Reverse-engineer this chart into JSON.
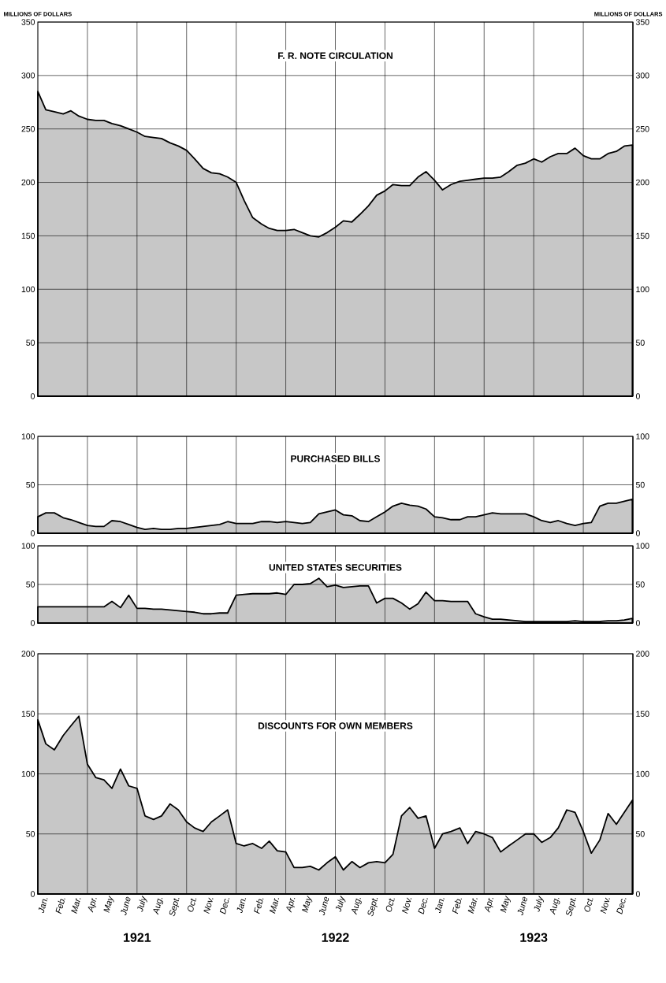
{
  "chart_data": [
    {
      "type": "area",
      "title": "F. R. NOTE CIRCULATION",
      "ylabel": "MILLIONS OF DOLLARS",
      "y2label": "MILLIONS OF DOLLARS",
      "color": "#000000",
      "grid": true,
      "tick_labels": "y",
      "xlim": [
        "1921-01-01",
        "1924-01-01"
      ],
      "ylim": [
        0,
        350
      ],
      "yticks": [
        0,
        50,
        100,
        150,
        200,
        250,
        300,
        350
      ],
      "y2lim": [
        0,
        350
      ],
      "y2ticks": [
        0,
        50,
        100,
        150,
        200,
        250,
        300,
        350
      ],
      "xticks": [
        {
          "value": "1921-04-01",
          "label": null
        },
        {
          "value": "1921-07-01",
          "label": null
        },
        {
          "value": "1921-10-01",
          "label": null
        },
        {
          "value": "1922-01-01",
          "label": null
        },
        {
          "value": "1922-04-01",
          "label": null
        },
        {
          "value": "1922-07-01",
          "label": null
        },
        {
          "value": "1922-10-01",
          "label": null
        },
        {
          "value": "1923-01-01",
          "label": null
        },
        {
          "value": "1923-04-01",
          "label": null
        },
        {
          "value": "1923-07-01",
          "label": null
        },
        {
          "value": "1923-10-01",
          "label": null
        }
      ],
      "x": [
        "1921-01-01",
        "1921-01-16",
        "1921-02-01",
        "1921-02-16",
        "1921-03-01",
        "1921-03-16",
        "1921-04-01",
        "1921-04-16",
        "1921-05-01",
        "1921-05-16",
        "1921-06-01",
        "1921-06-16",
        "1921-07-01",
        "1921-07-16",
        "1921-08-01",
        "1921-08-16",
        "1921-09-01",
        "1921-09-16",
        "1921-10-01",
        "1921-10-16",
        "1921-11-01",
        "1921-11-16",
        "1921-12-01",
        "1921-12-16",
        "1922-01-01",
        "1922-01-16",
        "1922-02-01",
        "1922-02-16",
        "1922-03-01",
        "1922-03-16",
        "1922-04-01",
        "1922-04-16",
        "1922-05-01",
        "1922-05-16",
        "1922-06-01",
        "1922-06-16",
        "1922-07-01",
        "1922-07-16",
        "1922-08-01",
        "1922-08-16",
        "1922-09-01",
        "1922-09-16",
        "1922-10-01",
        "1922-10-16",
        "1922-11-01",
        "1922-11-16",
        "1922-12-01",
        "1922-12-16",
        "1923-01-01",
        "1923-01-16",
        "1923-02-01",
        "1923-02-16",
        "1923-03-01",
        "1923-03-16",
        "1923-04-01",
        "1923-04-16",
        "1923-05-01",
        "1923-05-16",
        "1923-06-01",
        "1923-06-16",
        "1923-07-01",
        "1923-07-16",
        "1923-08-01",
        "1923-08-16",
        "1923-09-01",
        "1923-09-16",
        "1923-10-01",
        "1923-10-16",
        "1923-11-01",
        "1923-11-16",
        "1923-12-01",
        "1923-12-16",
        "1923-12-31"
      ],
      "values": [
        285,
        268,
        266,
        264,
        267,
        262,
        259,
        258,
        258,
        255,
        253,
        250,
        247,
        243,
        242,
        241,
        237,
        234,
        230,
        222,
        213,
        209,
        208,
        205,
        200,
        183,
        167,
        161,
        157,
        155,
        155,
        156,
        153,
        150,
        149,
        153,
        158,
        164,
        163,
        170,
        178,
        188,
        192,
        198,
        197,
        197,
        205,
        210,
        202,
        193,
        198,
        201,
        202,
        203,
        204,
        204,
        205,
        210,
        216,
        218,
        222,
        219,
        224,
        227,
        227,
        232,
        225,
        222,
        222,
        227,
        229,
        234,
        235
      ]
    },
    {
      "type": "area",
      "title": "PURCHASED BILLS",
      "color": "#000000",
      "grid": true,
      "tick_labels": "y",
      "xlim": [
        "1921-01-01",
        "1924-01-01"
      ],
      "ylim": [
        0,
        100
      ],
      "yticks": [
        0,
        50,
        100
      ],
      "y2lim": [
        0,
        100
      ],
      "y2ticks": [
        0,
        50,
        100
      ],
      "xticks": [
        {
          "value": "1921-04-01",
          "label": null
        },
        {
          "value": "1921-07-01",
          "label": null
        },
        {
          "value": "1921-10-01",
          "label": null
        },
        {
          "value": "1922-01-01",
          "label": null
        },
        {
          "value": "1922-04-01",
          "label": null
        },
        {
          "value": "1922-07-01",
          "label": null
        },
        {
          "value": "1922-10-01",
          "label": null
        },
        {
          "value": "1923-01-01",
          "label": null
        },
        {
          "value": "1923-04-01",
          "label": null
        },
        {
          "value": "1923-07-01",
          "label": null
        },
        {
          "value": "1923-10-01",
          "label": null
        }
      ],
      "x": [
        "1921-01-01",
        "1921-01-16",
        "1921-02-01",
        "1921-02-16",
        "1921-03-01",
        "1921-03-16",
        "1921-04-01",
        "1921-04-16",
        "1921-05-01",
        "1921-05-16",
        "1921-06-01",
        "1921-06-16",
        "1921-07-01",
        "1921-07-16",
        "1921-08-01",
        "1921-08-16",
        "1921-09-01",
        "1921-09-16",
        "1921-10-01",
        "1921-10-16",
        "1921-11-01",
        "1921-11-16",
        "1921-12-01",
        "1921-12-16",
        "1922-01-01",
        "1922-01-16",
        "1922-02-01",
        "1922-02-16",
        "1922-03-01",
        "1922-03-16",
        "1922-04-01",
        "1922-04-16",
        "1922-05-01",
        "1922-05-16",
        "1922-06-01",
        "1922-06-16",
        "1922-07-01",
        "1922-07-16",
        "1922-08-01",
        "1922-08-16",
        "1922-09-01",
        "1922-09-16",
        "1922-10-01",
        "1922-10-16",
        "1922-11-01",
        "1922-11-16",
        "1922-12-01",
        "1922-12-16",
        "1923-01-01",
        "1923-01-16",
        "1923-02-01",
        "1923-02-16",
        "1923-03-01",
        "1923-03-16",
        "1923-04-01",
        "1923-04-16",
        "1923-05-01",
        "1923-05-16",
        "1923-06-01",
        "1923-06-16",
        "1923-07-01",
        "1923-07-16",
        "1923-08-01",
        "1923-08-16",
        "1923-09-01",
        "1923-09-16",
        "1923-10-01",
        "1923-10-16",
        "1923-11-01",
        "1923-11-16",
        "1923-12-01",
        "1923-12-16",
        "1923-12-31"
      ],
      "values": [
        17,
        21,
        21,
        16,
        14,
        11,
        8,
        7,
        7,
        13,
        12,
        9,
        6,
        4,
        5,
        4,
        4,
        5,
        5,
        6,
        7,
        8,
        9,
        12,
        10,
        10,
        10,
        12,
        12,
        11,
        12,
        11,
        10,
        11,
        20,
        22,
        24,
        19,
        18,
        13,
        12,
        17,
        22,
        28,
        31,
        29,
        28,
        25,
        17,
        16,
        14,
        14,
        17,
        17,
        19,
        21,
        20,
        20,
        20,
        20,
        17,
        13,
        11,
        13,
        10,
        8,
        10,
        11,
        28,
        31,
        31,
        33,
        35
      ]
    },
    {
      "type": "area",
      "title": "UNITED STATES SECURITIES",
      "color": "#000000",
      "grid": true,
      "tick_labels": "y",
      "xlim": [
        "1921-01-01",
        "1924-01-01"
      ],
      "ylim": [
        0,
        100
      ],
      "yticks": [
        0,
        50,
        100
      ],
      "y2lim": [
        0,
        100
      ],
      "y2ticks": [
        0,
        50,
        100
      ],
      "xticks": [
        {
          "value": "1921-04-01",
          "label": null
        },
        {
          "value": "1921-07-01",
          "label": null
        },
        {
          "value": "1921-10-01",
          "label": null
        },
        {
          "value": "1922-01-01",
          "label": null
        },
        {
          "value": "1922-04-01",
          "label": null
        },
        {
          "value": "1922-07-01",
          "label": null
        },
        {
          "value": "1922-10-01",
          "label": null
        },
        {
          "value": "1923-01-01",
          "label": null
        },
        {
          "value": "1923-04-01",
          "label": null
        },
        {
          "value": "1923-07-01",
          "label": null
        },
        {
          "value": "1923-10-01",
          "label": null
        }
      ],
      "x": [
        "1921-01-01",
        "1921-01-16",
        "1921-02-01",
        "1921-02-16",
        "1921-03-01",
        "1921-03-16",
        "1921-04-01",
        "1921-04-16",
        "1921-05-01",
        "1921-05-16",
        "1921-06-01",
        "1921-06-16",
        "1921-07-01",
        "1921-07-16",
        "1921-08-01",
        "1921-08-16",
        "1921-09-01",
        "1921-09-16",
        "1921-10-01",
        "1921-10-16",
        "1921-11-01",
        "1921-11-16",
        "1921-12-01",
        "1921-12-16",
        "1922-01-01",
        "1922-01-16",
        "1922-02-01",
        "1922-02-16",
        "1922-03-01",
        "1922-03-16",
        "1922-04-01",
        "1922-04-16",
        "1922-05-01",
        "1922-05-16",
        "1922-06-01",
        "1922-06-16",
        "1922-07-01",
        "1922-07-16",
        "1922-08-01",
        "1922-08-16",
        "1922-09-01",
        "1922-09-16",
        "1922-10-01",
        "1922-10-16",
        "1922-11-01",
        "1922-11-16",
        "1922-12-01",
        "1922-12-16",
        "1923-01-01",
        "1923-01-16",
        "1923-02-01",
        "1923-02-16",
        "1923-03-01",
        "1923-03-16",
        "1923-04-01",
        "1923-04-16",
        "1923-05-01",
        "1923-05-16",
        "1923-06-01",
        "1923-06-16",
        "1923-07-01",
        "1923-07-16",
        "1923-08-01",
        "1923-08-16",
        "1923-09-01",
        "1923-09-16",
        "1923-10-01",
        "1923-10-16",
        "1923-11-01",
        "1923-11-16",
        "1923-12-01",
        "1923-12-16",
        "1923-12-31"
      ],
      "values": [
        21,
        21,
        21,
        21,
        21,
        21,
        21,
        21,
        21,
        28,
        20,
        36,
        19,
        19,
        18,
        18,
        17,
        16,
        15,
        14,
        12,
        12,
        13,
        13,
        36,
        37,
        38,
        38,
        38,
        39,
        37,
        50,
        50,
        51,
        58,
        47,
        49,
        46,
        47,
        48,
        48,
        26,
        32,
        32,
        26,
        18,
        25,
        40,
        29,
        29,
        28,
        28,
        28,
        12,
        8,
        5,
        5,
        4,
        3,
        2,
        2,
        2,
        2,
        2,
        2,
        3,
        2,
        2,
        2,
        3,
        3,
        4,
        6
      ]
    },
    {
      "type": "area",
      "title": "DISCOUNTS FOR OWN MEMBERS",
      "color": "#000000",
      "grid": true,
      "annotations": [
        "1921",
        "1922",
        "1923"
      ],
      "xlim": [
        "1921-01-01",
        "1924-01-01"
      ],
      "ylim": [
        0,
        200
      ],
      "yticks": [
        0,
        50,
        100,
        150,
        200
      ],
      "y2lim": [
        0,
        200
      ],
      "y2ticks": [
        0,
        50,
        100,
        150,
        200
      ],
      "xticks": [
        {
          "value": "1921-01-16",
          "label": "Jan."
        },
        {
          "value": "1921-02-16",
          "label": "Feb."
        },
        {
          "value": "1921-03-16",
          "label": "Mar."
        },
        {
          "value": "1921-04-01",
          "label": null
        },
        {
          "value": "1921-04-16",
          "label": "Apr."
        },
        {
          "value": "1921-05-16",
          "label": "May"
        },
        {
          "value": "1921-06-16",
          "label": "June"
        },
        {
          "value": "1921-07-01",
          "label": null
        },
        {
          "value": "1921-07-16",
          "label": "July"
        },
        {
          "value": "1921-08-16",
          "label": "Aug."
        },
        {
          "value": "1921-09-16",
          "label": "Sept."
        },
        {
          "value": "1921-10-01",
          "label": null
        },
        {
          "value": "1921-10-16",
          "label": "Oct."
        },
        {
          "value": "1921-11-16",
          "label": "Nov."
        },
        {
          "value": "1921-12-16",
          "label": "Dec."
        },
        {
          "value": "1922-01-01",
          "label": null
        },
        {
          "value": "1922-01-16",
          "label": "Jan."
        },
        {
          "value": "1922-02-16",
          "label": "Feb."
        },
        {
          "value": "1922-03-16",
          "label": "Mar."
        },
        {
          "value": "1922-04-01",
          "label": null
        },
        {
          "value": "1922-04-16",
          "label": "Apr."
        },
        {
          "value": "1922-05-16",
          "label": "May"
        },
        {
          "value": "1922-06-16",
          "label": "June"
        },
        {
          "value": "1922-07-01",
          "label": null
        },
        {
          "value": "1922-07-16",
          "label": "July"
        },
        {
          "value": "1922-08-16",
          "label": "Aug."
        },
        {
          "value": "1922-09-16",
          "label": "Sept."
        },
        {
          "value": "1922-10-01",
          "label": null
        },
        {
          "value": "1922-10-16",
          "label": "Oct."
        },
        {
          "value": "1922-11-16",
          "label": "Nov."
        },
        {
          "value": "1922-12-16",
          "label": "Dec."
        },
        {
          "value": "1923-01-01",
          "label": null
        },
        {
          "value": "1923-01-16",
          "label": "Jan."
        },
        {
          "value": "1923-02-16",
          "label": "Feb."
        },
        {
          "value": "1923-03-16",
          "label": "Mar."
        },
        {
          "value": "1923-04-01",
          "label": null
        },
        {
          "value": "1923-04-16",
          "label": "Apr."
        },
        {
          "value": "1923-05-16",
          "label": "May"
        },
        {
          "value": "1923-06-16",
          "label": "June"
        },
        {
          "value": "1923-07-01",
          "label": null
        },
        {
          "value": "1923-07-16",
          "label": "July"
        },
        {
          "value": "1923-08-16",
          "label": "Aug."
        },
        {
          "value": "1923-09-16",
          "label": "Sept."
        },
        {
          "value": "1923-10-01",
          "label": null
        },
        {
          "value": "1923-10-16",
          "label": "Oct."
        },
        {
          "value": "1923-11-16",
          "label": "Nov."
        },
        {
          "value": "1923-12-16",
          "label": "Dec."
        }
      ],
      "x": [
        "1921-01-01",
        "1921-01-16",
        "1921-02-01",
        "1921-02-16",
        "1921-03-01",
        "1921-03-16",
        "1921-04-01",
        "1921-04-16",
        "1921-05-01",
        "1921-05-16",
        "1921-06-01",
        "1921-06-16",
        "1921-07-01",
        "1921-07-16",
        "1921-08-01",
        "1921-08-16",
        "1921-09-01",
        "1921-09-16",
        "1921-10-01",
        "1921-10-16",
        "1921-11-01",
        "1921-11-16",
        "1921-12-01",
        "1921-12-16",
        "1922-01-01",
        "1922-01-16",
        "1922-02-01",
        "1922-02-16",
        "1922-03-01",
        "1922-03-16",
        "1922-04-01",
        "1922-04-16",
        "1922-05-01",
        "1922-05-16",
        "1922-06-01",
        "1922-06-16",
        "1922-07-01",
        "1922-07-16",
        "1922-08-01",
        "1922-08-16",
        "1922-09-01",
        "1922-09-16",
        "1922-10-01",
        "1922-10-16",
        "1922-11-01",
        "1922-11-16",
        "1922-12-01",
        "1922-12-16",
        "1923-01-01",
        "1923-01-16",
        "1923-02-01",
        "1923-02-16",
        "1923-03-01",
        "1923-03-16",
        "1923-04-01",
        "1923-04-16",
        "1923-05-01",
        "1923-05-16",
        "1923-06-01",
        "1923-06-16",
        "1923-07-01",
        "1923-07-16",
        "1923-08-01",
        "1923-08-16",
        "1923-09-01",
        "1923-09-16",
        "1923-10-01",
        "1923-10-16",
        "1923-11-01",
        "1923-11-16",
        "1923-12-01",
        "1923-12-16",
        "1923-12-31"
      ],
      "values": [
        145,
        125,
        120,
        132,
        140,
        148,
        108,
        97,
        95,
        88,
        104,
        90,
        88,
        65,
        62,
        65,
        75,
        70,
        60,
        55,
        52,
        60,
        65,
        70,
        42,
        40,
        42,
        38,
        44,
        36,
        35,
        22,
        22,
        23,
        20,
        26,
        31,
        20,
        27,
        22,
        26,
        27,
        26,
        33,
        65,
        72,
        63,
        65,
        38,
        50,
        52,
        55,
        42,
        52,
        50,
        47,
        35,
        40,
        45,
        50,
        50,
        43,
        47,
        55,
        70,
        68,
        52,
        34,
        45,
        67,
        58,
        68,
        78
      ]
    }
  ]
}
